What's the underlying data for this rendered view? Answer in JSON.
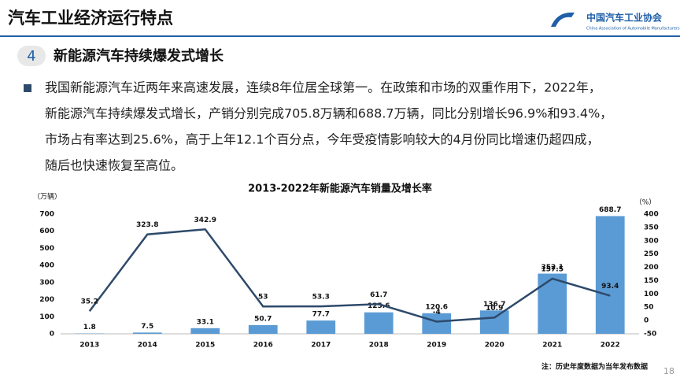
{
  "header": {
    "title": "汽车工业经济运行特点",
    "logo_cn": "中国汽车工业协会",
    "logo_en": "China Association of Automobile Manufacturers"
  },
  "section": {
    "number": "4",
    "title": "新能源汽车持续爆发式增长"
  },
  "paragraph": [
    "我国新能源汽车近两年来高速发展，连续8年位居全球第一。在政策和市场的双重作用下，2022年，",
    "新能源汽车持续爆发式增长，产销分别完成705.8万辆和688.7万辆，同比分别增长96.9%和93.4%，",
    "市场占有率达到25.6%，高于上年12.1个百分点，今年受疫情影响较大的4月份同比增速仍超四成，",
    "随后也快速恢复至高位。"
  ],
  "chart_data": {
    "type": "bar-line",
    "title": "2013-2022年新能源汽车销量及增长率",
    "y_label": "（万辆）",
    "y2_label": "（%）",
    "categories": [
      "2013",
      "2014",
      "2015",
      "2016",
      "2017",
      "2018",
      "2019",
      "2020",
      "2021",
      "2022"
    ],
    "series": [
      {
        "type": "bar",
        "color": "#5b9bd5",
        "values": [
          1.8,
          7.5,
          33.1,
          50.7,
          77.7,
          125.6,
          120.6,
          136.7,
          352.1,
          688.7
        ]
      },
      {
        "type": "line",
        "axis": "y2",
        "color": "#2e4a6b",
        "values": [
          35.2,
          323.8,
          342.9,
          53.0,
          53.3,
          61.7,
          -4.0,
          10.9,
          157.5,
          93.4
        ]
      }
    ],
    "ylim": [
      0,
      700
    ],
    "yticks": [
      0,
      100,
      200,
      300,
      400,
      500,
      600,
      700
    ],
    "y2lim": [
      -50,
      400
    ],
    "y2ticks": [
      -50,
      0,
      50,
      100,
      150,
      200,
      250,
      300,
      350,
      400
    ]
  },
  "note": "注：历史年度数据为当年发布数据",
  "page_number": "18"
}
